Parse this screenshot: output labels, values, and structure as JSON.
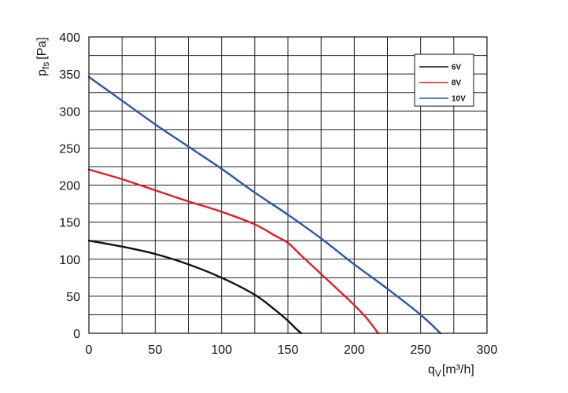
{
  "chart_data": {
    "type": "line",
    "xlabel_main": "q",
    "xlabel_sub": "V",
    "xlabel_unit": "[m³/h]",
    "ylabel_main": "p",
    "ylabel_sub": "fs",
    "ylabel_unit": "[Pa]",
    "xlim": [
      0,
      300
    ],
    "ylim": [
      0,
      400
    ],
    "x_ticks": [
      0,
      50,
      100,
      150,
      200,
      250,
      300
    ],
    "y_ticks": [
      0,
      50,
      100,
      150,
      200,
      250,
      300,
      350,
      400
    ],
    "x_minor_step": 25,
    "y_minor_step": 25,
    "grid": true,
    "legend_position": "top-right",
    "series": [
      {
        "name": "6V",
        "color": "#111111",
        "x": [
          0,
          25,
          50,
          75,
          100,
          125,
          140,
          150,
          155,
          160
        ],
        "y": [
          125,
          117,
          107,
          93,
          75,
          52,
          32,
          17,
          8,
          0
        ]
      },
      {
        "name": "8V",
        "color": "#e02020",
        "x": [
          0,
          25,
          50,
          75,
          100,
          125,
          140,
          150,
          160,
          175,
          190,
          200,
          210,
          218
        ],
        "y": [
          221,
          208,
          193,
          178,
          164,
          147,
          132,
          122,
          105,
          80,
          55,
          38,
          19,
          0
        ]
      },
      {
        "name": "10V",
        "color": "#2a56a8",
        "x": [
          0,
          25,
          50,
          75,
          100,
          125,
          150,
          175,
          200,
          225,
          250,
          265
        ],
        "y": [
          346,
          314,
          282,
          252,
          222,
          190,
          160,
          128,
          93,
          60,
          25,
          0
        ]
      }
    ]
  }
}
